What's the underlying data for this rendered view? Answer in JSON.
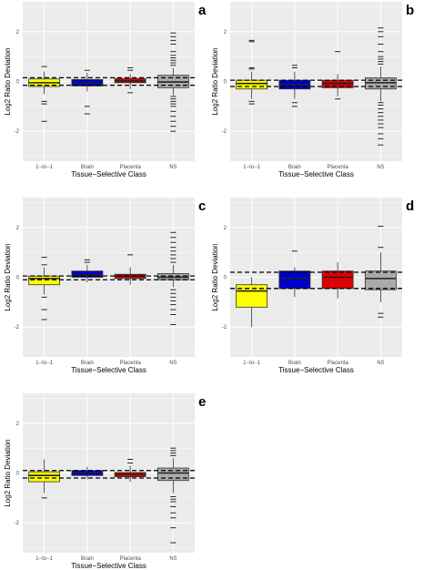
{
  "colors": {
    "panel_bg": "#ebebeb",
    "grid": "#ffffff",
    "1-to-1": "#ffff00",
    "Brain": "#0000cc",
    "Placenta": "#dd0000",
    "NS": "#aaaaaa"
  },
  "chart_data": [
    {
      "label": "a",
      "type": "box",
      "xlabel": "Tissue−Selective Class",
      "ylabel": "Log2 Ratio Deviation",
      "ylim": [
        -3.2,
        3.2
      ],
      "yticks": [
        "-2",
        "0",
        "2"
      ],
      "categories": [
        "1−to−1",
        "Brain",
        "Placenta",
        "NS"
      ],
      "hlines": [
        0.15,
        -0.15
      ],
      "boxes": [
        {
          "q1": -0.2,
          "med": -0.05,
          "q3": 0.1,
          "wlo": -0.5,
          "whi": 0.4,
          "out": [
            -0.8,
            -0.9,
            -1.6,
            0.6
          ]
        },
        {
          "q1": -0.18,
          "med": -0.05,
          "q3": 0.08,
          "wlo": -0.4,
          "whi": 0.35,
          "out": [
            -1.0,
            -1.3,
            0.45
          ]
        },
        {
          "q1": -0.05,
          "med": 0.02,
          "q3": 0.12,
          "wlo": -0.3,
          "whi": 0.3,
          "out": [
            -0.45,
            0.45,
            0.55
          ]
        },
        {
          "q1": -0.25,
          "med": -0.02,
          "q3": 0.25,
          "wlo": -0.55,
          "whi": 0.55,
          "out": [
            0.65,
            0.75,
            0.85,
            0.95,
            1.05,
            1.2,
            1.5,
            1.65,
            1.8,
            1.95,
            -0.6,
            -0.7,
            -0.8,
            -0.9,
            -1.0,
            -1.2,
            -1.4,
            -1.6,
            -1.8,
            -2.0
          ]
        }
      ]
    },
    {
      "label": "b",
      "type": "box",
      "xlabel": "Tissue−Selective Class",
      "ylabel": "Log2 Ratio Deviation",
      "ylim": [
        -3.2,
        3.2
      ],
      "yticks": [
        "-2",
        "0",
        "2"
      ],
      "categories": [
        "1−to−1",
        "Brain",
        "Placenta",
        "NS"
      ],
      "hlines": [
        0.05,
        -0.2
      ],
      "boxes": [
        {
          "q1": -0.3,
          "med": -0.08,
          "q3": 0.05,
          "wlo": -0.7,
          "whi": 0.4,
          "out": [
            -0.8,
            -0.9,
            0.5,
            0.55,
            1.6,
            1.65
          ]
        },
        {
          "q1": -0.3,
          "med": -0.12,
          "q3": 0.05,
          "wlo": -0.7,
          "whi": 0.4,
          "out": [
            -0.85,
            -1.0,
            0.55,
            0.65
          ]
        },
        {
          "q1": -0.25,
          "med": -0.08,
          "q3": 0.05,
          "wlo": -0.6,
          "whi": 0.3,
          "out": [
            -0.7,
            1.2
          ]
        },
        {
          "q1": -0.3,
          "med": -0.05,
          "q3": 0.15,
          "wlo": -0.8,
          "whi": 0.6,
          "out": [
            0.7,
            0.8,
            0.9,
            1.0,
            1.2,
            1.5,
            1.8,
            2.0,
            2.15,
            -0.85,
            -0.95,
            -1.1,
            -1.25,
            -1.4,
            -1.55,
            -1.7,
            -1.85,
            -2.1,
            -2.3,
            -2.55
          ]
        }
      ]
    },
    {
      "label": "c",
      "type": "box",
      "xlabel": "Tissue−Selective Class",
      "ylabel": "Log2 Ratio Deviation",
      "ylim": [
        -3.2,
        3.2
      ],
      "yticks": [
        "-2",
        "0",
        "2"
      ],
      "categories": [
        "1−to−1",
        "Brain",
        "Placenta",
        "NS"
      ],
      "hlines": [
        0.05,
        -0.1
      ],
      "boxes": [
        {
          "q1": -0.3,
          "med": -0.05,
          "q3": 0.05,
          "wlo": -0.7,
          "whi": 0.4,
          "out": [
            -0.8,
            -1.3,
            -1.7,
            0.5,
            0.8
          ]
        },
        {
          "q1": 0.0,
          "med": 0.1,
          "q3": 0.25,
          "wlo": -0.2,
          "whi": 0.5,
          "out": [
            0.6,
            0.7
          ]
        },
        {
          "q1": -0.05,
          "med": 0.05,
          "q3": 0.12,
          "wlo": -0.3,
          "whi": 0.4,
          "out": [
            0.9
          ]
        },
        {
          "q1": -0.1,
          "med": 0.0,
          "q3": 0.15,
          "wlo": -0.4,
          "whi": 0.5,
          "out": [
            0.6,
            0.75,
            0.9,
            1.05,
            1.2,
            1.4,
            1.6,
            1.8,
            -0.5,
            -0.65,
            -0.8,
            -0.95,
            -1.1,
            -1.3,
            -1.5,
            -1.9
          ]
        }
      ]
    },
    {
      "label": "d",
      "type": "box",
      "xlabel": "Tissue−Selective Class",
      "ylabel": "Log2 Ratio Deviation",
      "ylim": [
        -3.2,
        3.2
      ],
      "yticks": [
        "-2",
        "0",
        "2"
      ],
      "categories": [
        "1−to−1",
        "Brain",
        "Placenta",
        "NS"
      ],
      "hlines": [
        0.2,
        -0.45
      ],
      "boxes": [
        {
          "q1": -1.2,
          "med": -0.55,
          "q3": -0.3,
          "wlo": -2.0,
          "whi": 0.0,
          "out": []
        },
        {
          "q1": -0.45,
          "med": -0.05,
          "q3": 0.25,
          "wlo": -0.8,
          "whi": 0.4,
          "out": [
            1.05
          ]
        },
        {
          "q1": -0.45,
          "med": 0.0,
          "q3": 0.25,
          "wlo": -0.85,
          "whi": 0.6,
          "out": []
        },
        {
          "q1": -0.5,
          "med": -0.05,
          "q3": 0.25,
          "wlo": -1.0,
          "whi": 1.0,
          "out": [
            1.2,
            2.05,
            -1.45,
            -1.6
          ]
        }
      ]
    },
    {
      "label": "e",
      "type": "box",
      "xlabel": "Tissue−Selective Class",
      "ylabel": "Log2 Ratio Deviation",
      "ylim": [
        -3.2,
        3.2
      ],
      "yticks": [
        "-2",
        "0",
        "2"
      ],
      "categories": [
        "1−to−1",
        "Brain",
        "Placenta",
        "NS"
      ],
      "hlines": [
        0.1,
        -0.2
      ],
      "boxes": [
        {
          "q1": -0.35,
          "med": -0.1,
          "q3": 0.05,
          "wlo": -0.8,
          "whi": 0.55,
          "out": [
            -1.0
          ]
        },
        {
          "q1": -0.1,
          "med": 0.0,
          "q3": 0.1,
          "wlo": -0.25,
          "whi": 0.25,
          "out": []
        },
        {
          "q1": -0.15,
          "med": -0.05,
          "q3": 0.02,
          "wlo": -0.35,
          "whi": 0.3,
          "out": [
            0.4,
            0.55
          ]
        },
        {
          "q1": -0.3,
          "med": 0.0,
          "q3": 0.2,
          "wlo": -0.8,
          "whi": 0.6,
          "out": [
            0.7,
            0.8,
            0.9,
            1.0,
            -0.95,
            -1.05,
            -1.15,
            -1.35,
            -1.6,
            -1.8,
            -2.2,
            -2.8
          ]
        }
      ]
    }
  ]
}
